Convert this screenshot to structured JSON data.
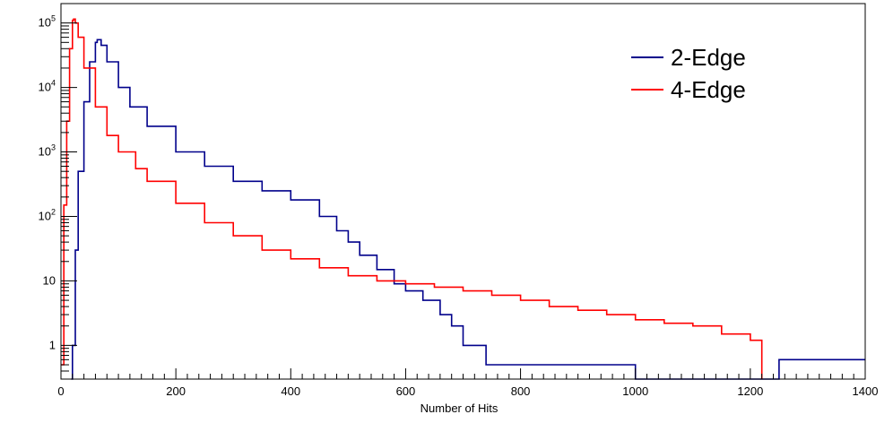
{
  "chart_data": {
    "type": "line",
    "title": "",
    "xlabel": "Number of Hits",
    "ylabel": "",
    "xlim": [
      0,
      1400
    ],
    "ylim": [
      0.3,
      200000
    ],
    "yscale": "log",
    "grid": false,
    "legend_position": "top-right",
    "x_ticks": [
      0,
      200,
      400,
      600,
      800,
      1000,
      1200,
      1400
    ],
    "x_tick_labels": [
      "0",
      "200",
      "400",
      "600",
      "800",
      "1000",
      "1200",
      "1400"
    ],
    "y_ticks": [
      1,
      10,
      100,
      1000,
      10000,
      100000
    ],
    "y_tick_labels": [
      {
        "base": "1",
        "exp": ""
      },
      {
        "base": "10",
        "exp": ""
      },
      {
        "base": "10",
        "exp": "2"
      },
      {
        "base": "10",
        "exp": "3"
      },
      {
        "base": "10",
        "exp": "4"
      },
      {
        "base": "10",
        "exp": "5"
      }
    ],
    "series": [
      {
        "name": "2-Edge",
        "color": "#00008b",
        "x": [
          18,
          20,
          25,
          30,
          40,
          50,
          60,
          63,
          70,
          80,
          100,
          120,
          150,
          200,
          250,
          300,
          350,
          400,
          450,
          480,
          500,
          520,
          550,
          580,
          600,
          630,
          660,
          680,
          700,
          720,
          740,
          760,
          800,
          850,
          900,
          1000,
          1250,
          1300,
          1310,
          1400
        ],
        "y": [
          0,
          1,
          30,
          500,
          6000,
          25000,
          50000,
          55000,
          45000,
          25000,
          10000,
          5000,
          2500,
          1000,
          600,
          350,
          250,
          180,
          100,
          60,
          40,
          25,
          15,
          9,
          7,
          5,
          3,
          2,
          1,
          1,
          0.5,
          0.5,
          0.5,
          0.5,
          0.5,
          0,
          0.6,
          0.6,
          0.6,
          0.6
        ]
      },
      {
        "name": "4-Edge",
        "color": "#ff0000",
        "x": [
          0,
          5,
          10,
          15,
          20,
          22,
          25,
          30,
          40,
          60,
          80,
          100,
          130,
          150,
          200,
          250,
          300,
          350,
          400,
          450,
          500,
          550,
          600,
          650,
          700,
          750,
          800,
          850,
          900,
          950,
          1000,
          1050,
          1100,
          1150,
          1200,
          1220
        ],
        "y": [
          0.5,
          150,
          3000,
          40000,
          110000,
          115000,
          100000,
          60000,
          20000,
          5000,
          1800,
          1000,
          550,
          350,
          160,
          80,
          50,
          30,
          22,
          16,
          12,
          10,
          9,
          8,
          7,
          6,
          5,
          4,
          3.5,
          3,
          2.5,
          2.2,
          2,
          1.5,
          1.2,
          0
        ]
      }
    ]
  }
}
